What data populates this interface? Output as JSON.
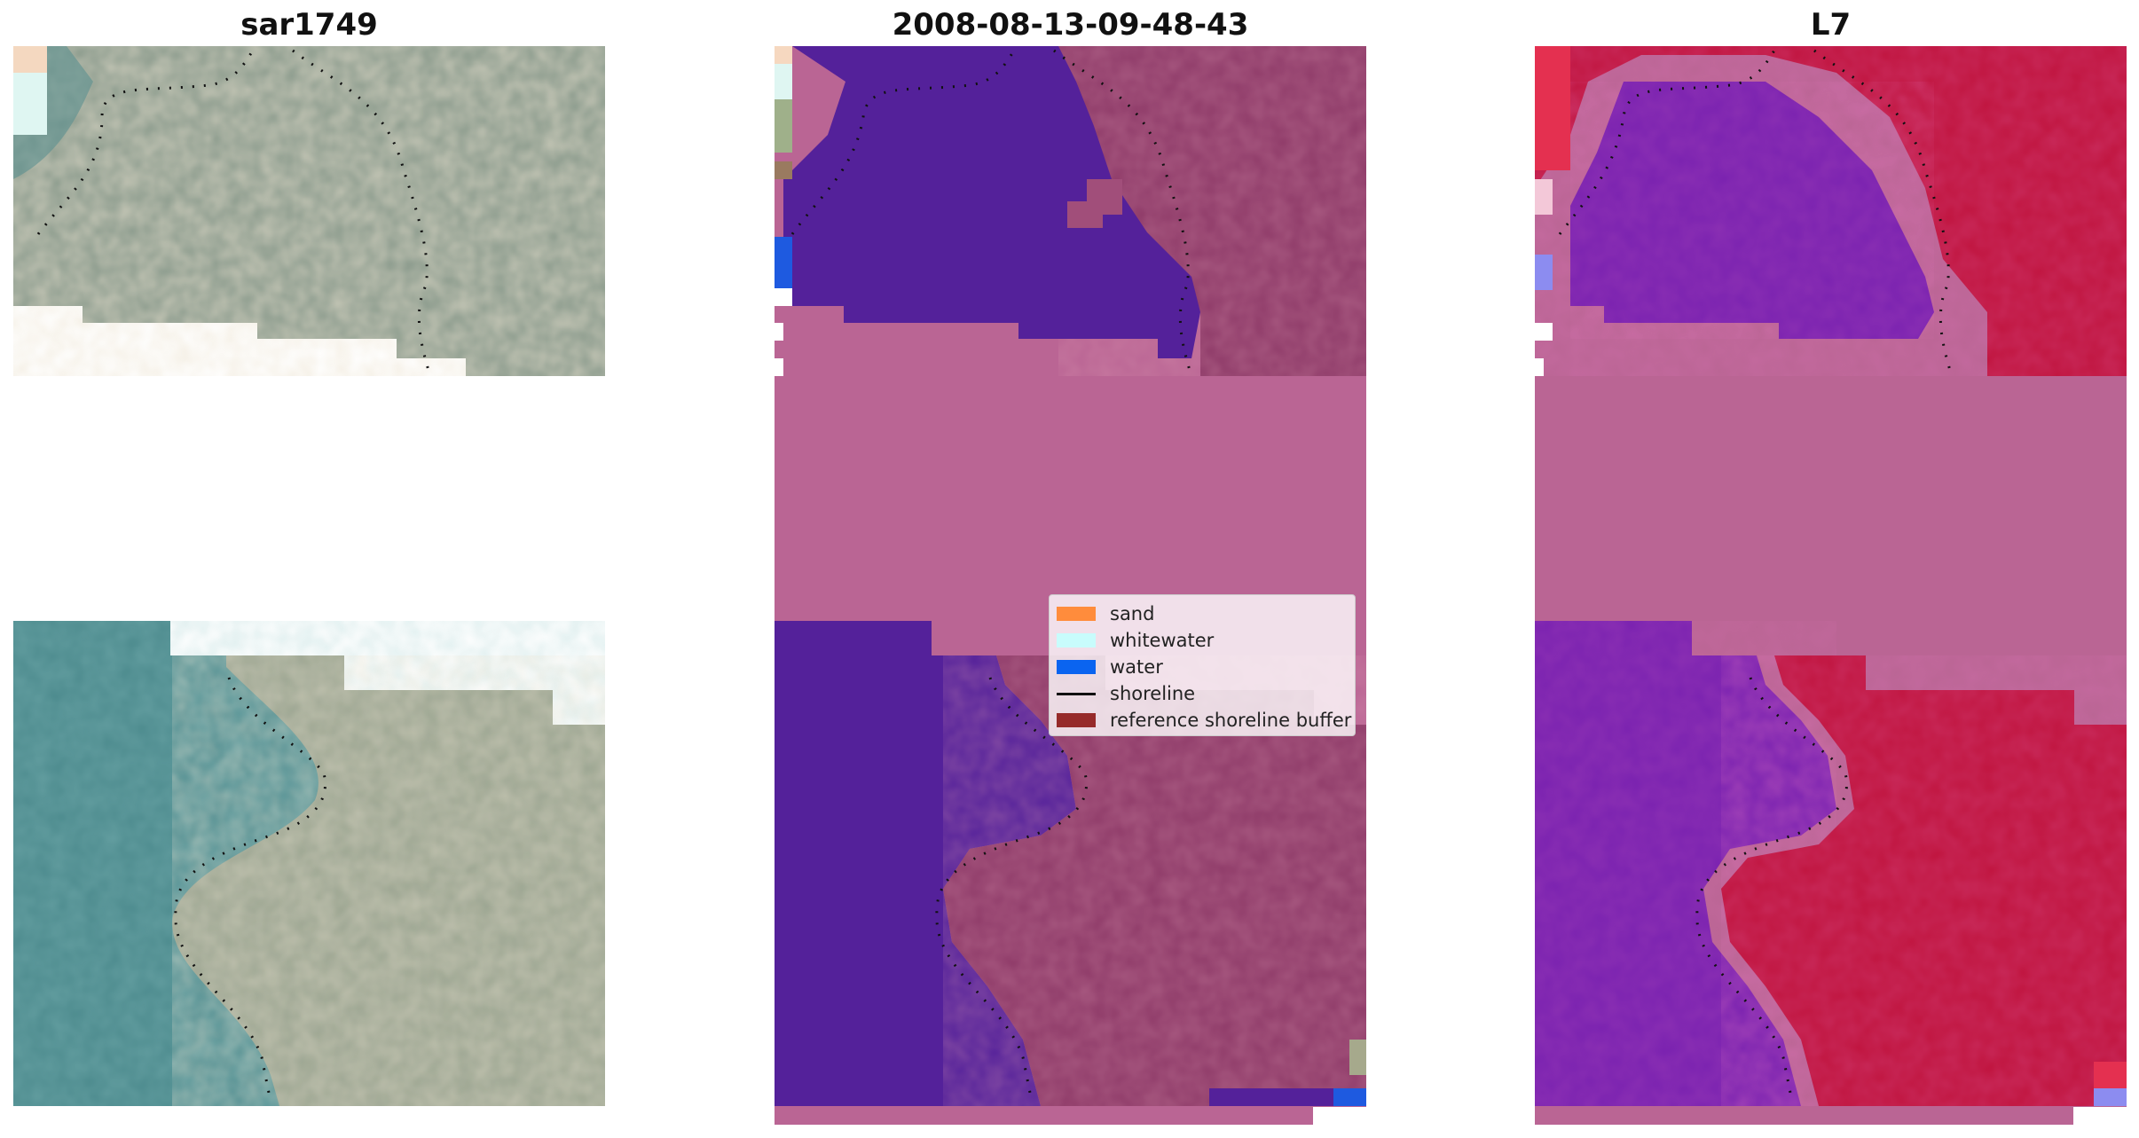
{
  "panels": [
    {
      "title": "sar1749"
    },
    {
      "title": "2008-08-13-09-48-43"
    },
    {
      "title": "L7"
    }
  ],
  "legend": {
    "items": [
      {
        "label": "sand",
        "color": "#ff8c3c",
        "kind": "patch"
      },
      {
        "label": "whitewater",
        "color": "#c8fcfc",
        "kind": "patch"
      },
      {
        "label": "water",
        "color": "#0a64f0",
        "kind": "patch"
      },
      {
        "label": "shoreline",
        "color": "#111111",
        "kind": "line"
      },
      {
        "label": "reference shoreline buffer",
        "color": "#962a2a",
        "kind": "patch"
      }
    ]
  },
  "colors": {
    "buffer_pink": "#ba6594",
    "class_water": "#54219a",
    "rgb_water": "#4a8a8a",
    "rgb_land": "#9c9a8c",
    "index_water": "#7a22b0",
    "index_land": "#c0143e"
  }
}
